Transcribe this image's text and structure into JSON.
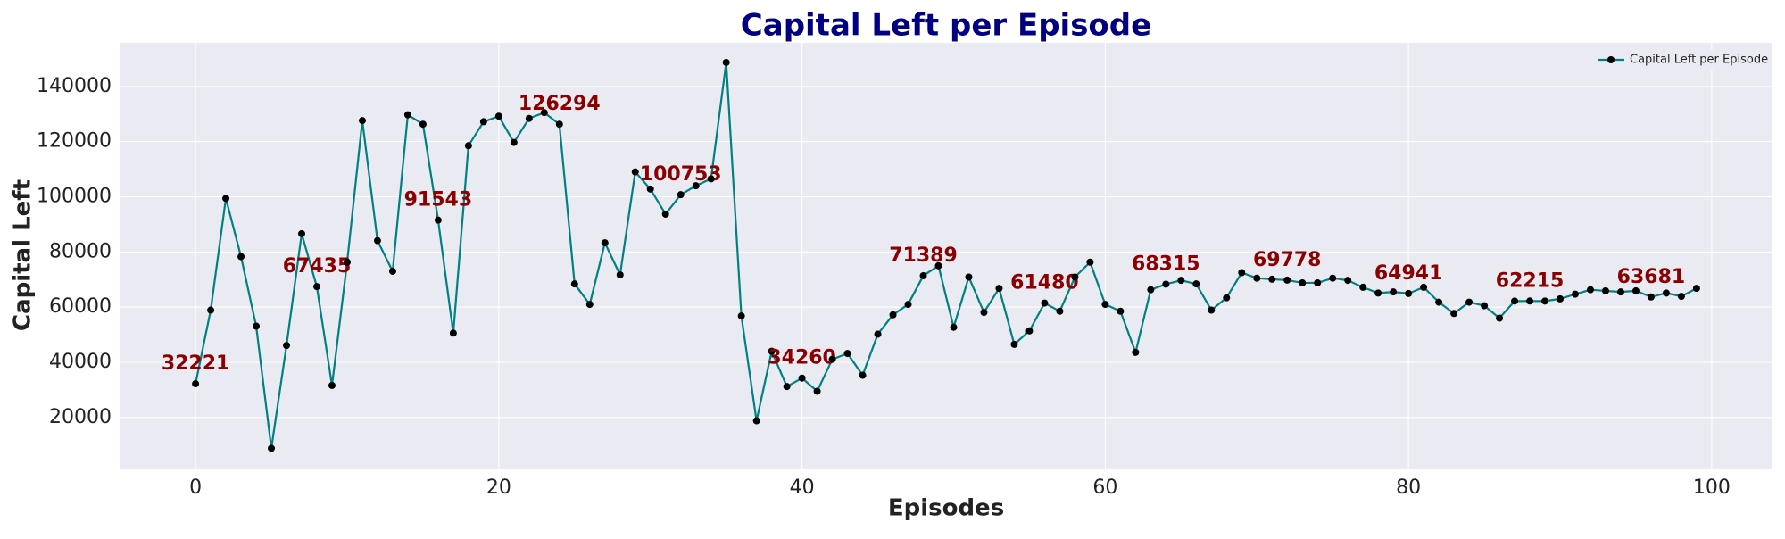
{
  "chart_data": {
    "type": "line",
    "title": "Capital Left per Episode",
    "xlabel": "Episodes",
    "ylabel": "Capital Left",
    "x": [
      0,
      1,
      2,
      3,
      4,
      5,
      6,
      7,
      8,
      9,
      10,
      11,
      12,
      13,
      14,
      15,
      16,
      17,
      18,
      19,
      20,
      21,
      22,
      23,
      24,
      25,
      26,
      27,
      28,
      29,
      30,
      31,
      32,
      33,
      34,
      35,
      36,
      37,
      38,
      39,
      40,
      41,
      42,
      43,
      44,
      45,
      46,
      47,
      48,
      49,
      50,
      51,
      52,
      53,
      54,
      55,
      56,
      57,
      58,
      59,
      60,
      61,
      62,
      63,
      64,
      65,
      66,
      67,
      68,
      69,
      70,
      71,
      72,
      73,
      74,
      75,
      76,
      77,
      78,
      79,
      80,
      81,
      82,
      83,
      84,
      85,
      86,
      87,
      88,
      89,
      90,
      91,
      92,
      93,
      94,
      95,
      96,
      97,
      98,
      99
    ],
    "series": [
      {
        "name": "Capital Left per Episode",
        "color": "#008080",
        "marker_color": "#000000",
        "values": [
          32221,
          58900,
          99400,
          78300,
          53100,
          8800,
          46100,
          86600,
          67435,
          31600,
          76300,
          127600,
          84100,
          73000,
          129700,
          126300,
          91543,
          50600,
          118500,
          127200,
          129200,
          119700,
          128400,
          130500,
          126294,
          68400,
          61000,
          83300,
          71700,
          109000,
          102800,
          93700,
          100753,
          104000,
          106500,
          148700,
          56800,
          18800,
          44000,
          31200,
          34260,
          29500,
          41100,
          43200,
          35300,
          50200,
          57200,
          61000,
          71389,
          75000,
          52700,
          70900,
          58100,
          66800,
          46500,
          51400,
          61480,
          58500,
          70900,
          76300,
          61000,
          58500,
          43600,
          66300,
          68315,
          69700,
          68400,
          58900,
          63400,
          72500,
          70500,
          70100,
          69778,
          68800,
          68800,
          70500,
          69700,
          67200,
          65100,
          65500,
          64941,
          67200,
          61800,
          57700,
          61800,
          60500,
          56000,
          62200,
          62215,
          62200,
          63000,
          64700,
          66300,
          65900,
          65500,
          65900,
          63681,
          65100,
          63900,
          66800
        ]
      }
    ],
    "data_label_every": 8,
    "data_label_color": "#8b0000",
    "xlim": [
      -4.95,
      103.95
    ],
    "xticks": [
      0,
      20,
      40,
      60,
      80,
      100
    ],
    "ylim": [
      1500,
      155800
    ],
    "yticks": [
      20000,
      40000,
      60000,
      80000,
      100000,
      120000,
      140000
    ],
    "grid": true,
    "legend": "upper right"
  }
}
